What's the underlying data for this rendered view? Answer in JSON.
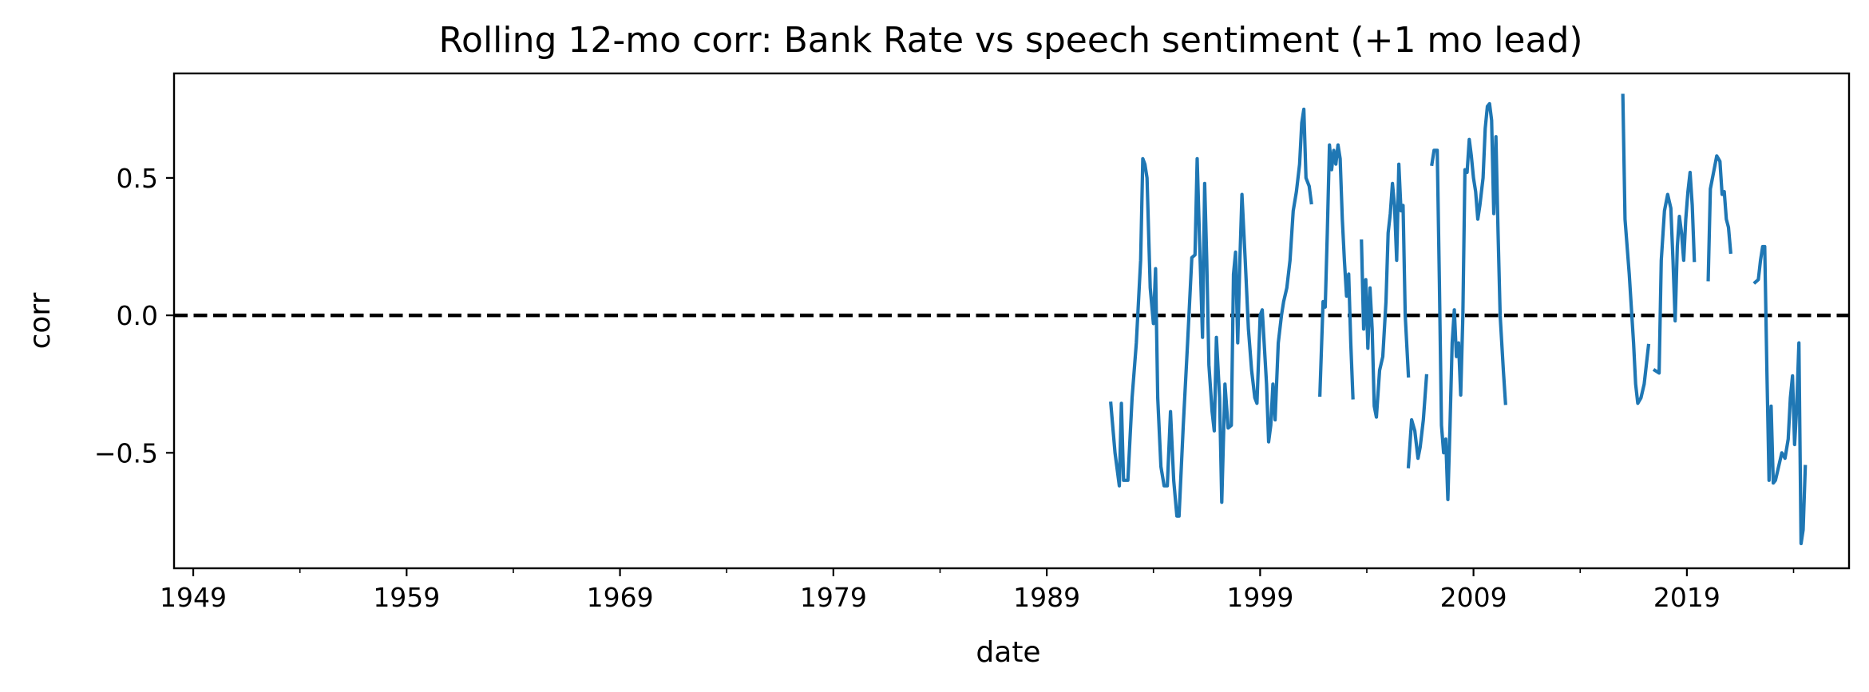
{
  "chart_data": {
    "type": "line",
    "title": "Rolling 12-mo corr: Bank Rate vs speech sentiment (+1 mo lead)",
    "xlabel": "date",
    "ylabel": "corr",
    "xlim": [
      1948.1,
      2026.6
    ],
    "ylim": [
      -0.92,
      0.88
    ],
    "x_ticks": [
      1949,
      1959,
      1969,
      1979,
      1989,
      1999,
      2009,
      2019
    ],
    "x_minor_ticks": [
      1954,
      1964,
      1974,
      1984,
      1994,
      2004,
      2014,
      2024
    ],
    "y_ticks": [
      {
        "value": 0.5,
        "label": "0.5"
      },
      {
        "value": 0.0,
        "label": "0.0"
      },
      {
        "value": -0.5,
        "label": "−0.5"
      }
    ],
    "reference_line": {
      "y": 0.0,
      "style": "dashed",
      "color": "#000000"
    },
    "grid": false,
    "series": [
      {
        "color": "#1f77b4",
        "segments": [
          [
            [
              1992.0,
              -0.32
            ],
            [
              1992.2,
              -0.5
            ],
            [
              1992.4,
              -0.62
            ],
            [
              1992.5,
              -0.32
            ],
            [
              1992.6,
              -0.6
            ],
            [
              1992.8,
              -0.6
            ],
            [
              1993.0,
              -0.3
            ],
            [
              1993.2,
              -0.1
            ],
            [
              1993.4,
              0.2
            ],
            [
              1993.5,
              0.57
            ],
            [
              1993.6,
              0.55
            ],
            [
              1993.7,
              0.5
            ],
            [
              1993.85,
              0.1
            ],
            [
              1994.0,
              -0.03
            ],
            [
              1994.1,
              0.17
            ],
            [
              1994.2,
              -0.3
            ],
            [
              1994.35,
              -0.55
            ],
            [
              1994.5,
              -0.62
            ],
            [
              1994.65,
              -0.62
            ],
            [
              1994.8,
              -0.35
            ],
            [
              1994.95,
              -0.6
            ],
            [
              1995.1,
              -0.73
            ],
            [
              1995.2,
              -0.73
            ],
            [
              1995.4,
              -0.4
            ],
            [
              1995.6,
              -0.1
            ],
            [
              1995.8,
              0.21
            ],
            [
              1995.95,
              0.22
            ],
            [
              1996.05,
              0.57
            ],
            [
              1996.15,
              0.3
            ],
            [
              1996.3,
              -0.08
            ],
            [
              1996.4,
              0.48
            ],
            [
              1996.5,
              0.2
            ],
            [
              1996.6,
              -0.18
            ],
            [
              1996.75,
              -0.35
            ],
            [
              1996.85,
              -0.42
            ],
            [
              1996.95,
              -0.08
            ],
            [
              1997.1,
              -0.3
            ],
            [
              1997.2,
              -0.68
            ],
            [
              1997.35,
              -0.25
            ],
            [
              1997.5,
              -0.41
            ],
            [
              1997.65,
              -0.4
            ],
            [
              1997.75,
              0.15
            ],
            [
              1997.85,
              0.23
            ],
            [
              1997.95,
              -0.1
            ],
            [
              1998.05,
              0.2
            ],
            [
              1998.15,
              0.44
            ],
            [
              1998.3,
              0.2
            ],
            [
              1998.45,
              -0.05
            ],
            [
              1998.6,
              -0.2
            ],
            [
              1998.75,
              -0.3
            ],
            [
              1998.85,
              -0.32
            ],
            [
              1999.0,
              0.0
            ],
            [
              1999.1,
              0.02
            ],
            [
              1999.3,
              -0.25
            ],
            [
              1999.4,
              -0.46
            ],
            [
              1999.5,
              -0.4
            ],
            [
              1999.6,
              -0.25
            ],
            [
              1999.7,
              -0.38
            ],
            [
              1999.85,
              -0.1
            ],
            [
              2000.0,
              0.0
            ],
            [
              2000.1,
              0.05
            ],
            [
              2000.25,
              0.1
            ],
            [
              2000.4,
              0.2
            ],
            [
              2000.55,
              0.38
            ],
            [
              2000.7,
              0.45
            ],
            [
              2000.85,
              0.55
            ],
            [
              2000.95,
              0.7
            ],
            [
              2001.05,
              0.75
            ],
            [
              2001.15,
              0.5
            ],
            [
              2001.3,
              0.47
            ],
            [
              2001.4,
              0.41
            ]
          ],
          [
            [
              2001.8,
              -0.29
            ],
            [
              2001.95,
              0.05
            ],
            [
              2002.05,
              0.03
            ],
            [
              2002.15,
              0.3
            ],
            [
              2002.25,
              0.62
            ],
            [
              2002.35,
              0.53
            ],
            [
              2002.45,
              0.6
            ],
            [
              2002.55,
              0.55
            ],
            [
              2002.65,
              0.62
            ],
            [
              2002.75,
              0.57
            ],
            [
              2002.85,
              0.35
            ],
            [
              2002.95,
              0.2
            ],
            [
              2003.05,
              0.07
            ],
            [
              2003.15,
              0.15
            ],
            [
              2003.25,
              -0.1
            ],
            [
              2003.35,
              -0.3
            ]
          ],
          [
            [
              2003.75,
              0.27
            ],
            [
              2003.85,
              -0.05
            ],
            [
              2003.95,
              0.13
            ],
            [
              2004.05,
              -0.12
            ],
            [
              2004.15,
              0.1
            ],
            [
              2004.25,
              -0.05
            ],
            [
              2004.35,
              -0.33
            ],
            [
              2004.45,
              -0.37
            ],
            [
              2004.6,
              -0.2
            ],
            [
              2004.75,
              -0.15
            ],
            [
              2004.9,
              0.05
            ],
            [
              2005.0,
              0.3
            ],
            [
              2005.1,
              0.37
            ],
            [
              2005.2,
              0.48
            ],
            [
              2005.3,
              0.4
            ],
            [
              2005.4,
              0.2
            ],
            [
              2005.5,
              0.55
            ],
            [
              2005.6,
              0.38
            ],
            [
              2005.7,
              0.4
            ],
            [
              2005.8,
              0.0
            ],
            [
              2005.95,
              -0.22
            ]
          ],
          [
            [
              2005.95,
              -0.55
            ],
            [
              2006.1,
              -0.38
            ],
            [
              2006.25,
              -0.42
            ],
            [
              2006.4,
              -0.52
            ],
            [
              2006.5,
              -0.48
            ],
            [
              2006.65,
              -0.38
            ],
            [
              2006.8,
              -0.22
            ]
          ],
          [
            [
              2007.05,
              0.55
            ],
            [
              2007.15,
              0.6
            ],
            [
              2007.3,
              0.6
            ],
            [
              2007.4,
              0.12
            ],
            [
              2007.5,
              -0.4
            ],
            [
              2007.6,
              -0.5
            ],
            [
              2007.7,
              -0.45
            ],
            [
              2007.8,
              -0.67
            ],
            [
              2007.9,
              -0.4
            ],
            [
              2008.0,
              -0.1
            ],
            [
              2008.1,
              0.02
            ],
            [
              2008.2,
              -0.15
            ],
            [
              2008.3,
              -0.1
            ],
            [
              2008.4,
              -0.29
            ],
            [
              2008.5,
              0.0
            ],
            [
              2008.6,
              0.53
            ],
            [
              2008.7,
              0.52
            ],
            [
              2008.8,
              0.64
            ],
            [
              2008.9,
              0.58
            ],
            [
              2009.0,
              0.5
            ],
            [
              2009.1,
              0.45
            ],
            [
              2009.2,
              0.35
            ],
            [
              2009.3,
              0.4
            ],
            [
              2009.45,
              0.5
            ],
            [
              2009.55,
              0.68
            ],
            [
              2009.65,
              0.76
            ],
            [
              2009.75,
              0.77
            ],
            [
              2009.85,
              0.71
            ],
            [
              2009.95,
              0.37
            ],
            [
              2010.05,
              0.65
            ],
            [
              2010.15,
              0.3
            ],
            [
              2010.25,
              0.0
            ],
            [
              2010.4,
              -0.2
            ],
            [
              2010.5,
              -0.32
            ]
          ],
          [
            [
              2016.0,
              0.8
            ],
            [
              2016.1,
              0.35
            ],
            [
              2016.3,
              0.15
            ],
            [
              2016.5,
              -0.1
            ],
            [
              2016.6,
              -0.25
            ],
            [
              2016.7,
              -0.32
            ],
            [
              2016.85,
              -0.3
            ],
            [
              2017.0,
              -0.25
            ],
            [
              2017.2,
              -0.11
            ]
          ],
          [
            [
              2017.5,
              -0.2
            ],
            [
              2017.7,
              -0.21
            ],
            [
              2017.8,
              0.2
            ],
            [
              2017.95,
              0.38
            ],
            [
              2018.1,
              0.44
            ],
            [
              2018.25,
              0.39
            ],
            [
              2018.35,
              0.2
            ],
            [
              2018.45,
              -0.02
            ],
            [
              2018.55,
              0.25
            ],
            [
              2018.65,
              0.36
            ],
            [
              2018.75,
              0.3
            ],
            [
              2018.85,
              0.2
            ],
            [
              2018.95,
              0.35
            ],
            [
              2019.05,
              0.45
            ],
            [
              2019.15,
              0.52
            ],
            [
              2019.25,
              0.4
            ],
            [
              2019.35,
              0.2
            ]
          ],
          [
            [
              2020.0,
              0.13
            ],
            [
              2020.1,
              0.46
            ],
            [
              2020.25,
              0.52
            ],
            [
              2020.4,
              0.58
            ],
            [
              2020.55,
              0.56
            ],
            [
              2020.65,
              0.44
            ],
            [
              2020.75,
              0.45
            ],
            [
              2020.85,
              0.35
            ],
            [
              2020.95,
              0.32
            ],
            [
              2021.05,
              0.23
            ]
          ],
          [
            [
              2022.2,
              0.12
            ],
            [
              2022.35,
              0.13
            ],
            [
              2022.45,
              0.2
            ],
            [
              2022.55,
              0.25
            ],
            [
              2022.65,
              0.25
            ],
            [
              2022.75,
              -0.2
            ],
            [
              2022.85,
              -0.6
            ],
            [
              2022.95,
              -0.33
            ],
            [
              2023.05,
              -0.61
            ],
            [
              2023.15,
              -0.6
            ],
            [
              2023.3,
              -0.55
            ],
            [
              2023.45,
              -0.5
            ],
            [
              2023.6,
              -0.52
            ],
            [
              2023.75,
              -0.45
            ],
            [
              2023.85,
              -0.3
            ],
            [
              2023.95,
              -0.22
            ],
            [
              2024.05,
              -0.47
            ],
            [
              2024.15,
              -0.33
            ],
            [
              2024.25,
              -0.1
            ],
            [
              2024.35,
              -0.83
            ],
            [
              2024.45,
              -0.78
            ],
            [
              2024.55,
              -0.55
            ]
          ]
        ]
      }
    ]
  }
}
